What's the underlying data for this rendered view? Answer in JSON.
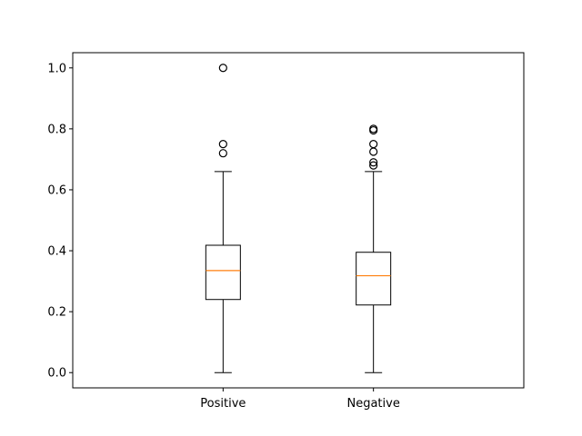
{
  "chart_data": {
    "type": "boxplot",
    "title": "",
    "xlabel": "",
    "ylabel": "",
    "ylim": [
      -0.05,
      1.05
    ],
    "yticks": [
      "0.0",
      "0.2",
      "0.4",
      "0.6",
      "0.8",
      "1.0"
    ],
    "grid": false,
    "categories": [
      "Positive",
      "Negative"
    ],
    "boxes": [
      {
        "category": "Positive",
        "whisker_low": 0.0,
        "q1": 0.24,
        "median": 0.335,
        "q3": 0.418,
        "whisker_high": 0.66,
        "outliers": [
          0.72,
          0.75,
          1.0
        ]
      },
      {
        "category": "Negative",
        "whisker_low": 0.0,
        "q1": 0.222,
        "median": 0.318,
        "q3": 0.395,
        "whisker_high": 0.66,
        "outliers": [
          0.68,
          0.69,
          0.725,
          0.75,
          0.795,
          0.8
        ]
      }
    ],
    "colors": {
      "box": "#000000",
      "median": "#ff7f0e",
      "outlier": "#000000"
    }
  }
}
